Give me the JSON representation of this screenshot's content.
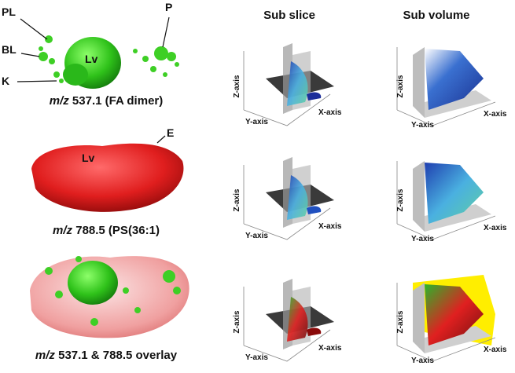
{
  "columns": {
    "sub_slice": "Sub slice",
    "sub_volume": "Sub volume"
  },
  "rows": [
    {
      "caption": {
        "italic": "m/z",
        "text": " 537.1 (FA dimer)"
      },
      "labels": [
        "PL",
        "P",
        "BL",
        "Lv",
        "K"
      ],
      "slice_axes": {
        "z": "Z-axis",
        "y": "Y-axis",
        "x": "X-axis"
      },
      "volume_axes": {
        "z": "Z-axis",
        "y": "Y-axis",
        "x": "X-axis"
      }
    },
    {
      "caption": {
        "italic": "m/z",
        "text": " 788.5 (PS(36:1)"
      },
      "labels": [
        "E",
        "Lv"
      ],
      "slice_axes": {
        "z": "Z-axis",
        "y": "Y-axis",
        "x": "X-axis"
      },
      "volume_axes": {
        "z": "Z-axis",
        "y": "Y-axis",
        "x": "X-axis"
      }
    },
    {
      "caption": {
        "italic": "m/z",
        "text": " 537.1 & 788.5 overlay"
      },
      "slice_axes": {
        "z": "Z-axis",
        "y": "Y-axis",
        "x": "X-axis"
      },
      "volume_axes": {
        "z": "Z-axis",
        "y": "Y-axis",
        "x": "X-axis"
      }
    }
  ]
}
